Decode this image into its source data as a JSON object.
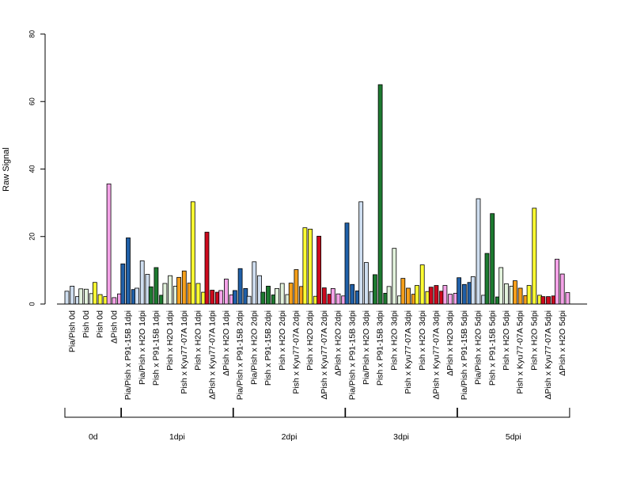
{
  "chart_data": {
    "type": "bar",
    "title": "",
    "ylabel": "Raw Signal",
    "xlabel": "",
    "ylim": [
      0,
      80
    ],
    "yticks": [
      0,
      20,
      40,
      60,
      80
    ],
    "bars_per_group": 3,
    "categories": [
      "Pia/Pish 0d",
      "Pish 0d",
      "Pish 0d",
      "ΔPish 0d",
      "Pia/Pish x P91-15B 1dpi",
      "Pia/Pish x H2O 1dpi",
      "Pish x P91-15B 1dpi",
      "Pish x H2O 1dpi",
      "Pish x Kyu77-07A 1dpi",
      "Pish x H2O 1dpi",
      "ΔPish x Kyu77-07A 1dpi",
      "ΔPish x H2O 1dpi",
      "Pia/Pish x P91-15B 2dpi",
      "Pia/Pish x H2O 2dpi",
      "Pish x P91-15B 2dpi",
      "Pish x H2O 2dpi",
      "Pish x Kyu77-07A 2dpi",
      "Pish x H2O 2dpi",
      "ΔPish x Kyu77-07A 2dpi",
      "ΔPish x H2O 2dpi",
      "Pia/Pish x P91-15B 3dpi",
      "Pia/Pish x H2O 3dpi",
      "Pish x P91-15B 3dpi",
      "Pish x H2O 3dpi",
      "Pish x Kyu77-07A 3dpi",
      "Pish x H2O 3dpi",
      "ΔPish x Kyu77-07A 3dpi",
      "ΔPish x H2O 3dpi",
      "Pia/Pish x P91-15B 5dpi",
      "Pia/Pish x H2O 5dpi",
      "Pish x P91-15B 5dpi",
      "Pish x H2O 5dpi",
      "Pish x Kyu77-07A 5dpi",
      "Pish x H2O 5dpi",
      "ΔPish x Kyu77-07A 5dpi",
      "ΔPish x H2O 5dpi"
    ],
    "colors": [
      "#cfdef0",
      "#e2f2dc",
      "#ffff33",
      "#f5a3e8",
      "#2060a8",
      "#cfdef0",
      "#1d7a30",
      "#e2f2dc",
      "#f59f1a",
      "#ffff33",
      "#cc0a1e",
      "#f5a3e8",
      "#2060a8",
      "#cfdef0",
      "#1d7a30",
      "#e2f2dc",
      "#f59f1a",
      "#ffff33",
      "#cc0a1e",
      "#f5a3e8",
      "#2060a8",
      "#cfdef0",
      "#1d7a30",
      "#e2f2dc",
      "#f59f1a",
      "#ffff33",
      "#cc0a1e",
      "#f5a3e8",
      "#2060a8",
      "#cfdef0",
      "#1d7a30",
      "#e2f2dc",
      "#f59f1a",
      "#ffff33",
      "#cc0a1e",
      "#f5a3e8"
    ],
    "values": [
      [
        3.8,
        5.3,
        2.2
      ],
      [
        4.5,
        4.4,
        3.1
      ],
      [
        6.4,
        2.8,
        2.2
      ],
      [
        35.6,
        1.9,
        3.0
      ],
      [
        11.9,
        19.6,
        4.3
      ],
      [
        4.7,
        12.8,
        8.8
      ],
      [
        5.1,
        10.8,
        2.6
      ],
      [
        6.1,
        8.4,
        5.3
      ],
      [
        7.9,
        9.8,
        6.2
      ],
      [
        30.3,
        6.1,
        3.5
      ],
      [
        21.3,
        4.1,
        3.5
      ],
      [
        4.0,
        7.4,
        2.7
      ],
      [
        4.0,
        10.5,
        4.6
      ],
      [
        2.3,
        12.5,
        8.4
      ],
      [
        3.5,
        5.3,
        2.7
      ],
      [
        4.6,
        6.1,
        2.8
      ],
      [
        6.2,
        10.2,
        5.2
      ],
      [
        22.6,
        22.2,
        2.3
      ],
      [
        20.1,
        4.8,
        2.9
      ],
      [
        4.6,
        3.0,
        2.4
      ],
      [
        24.0,
        5.8,
        3.9
      ],
      [
        30.3,
        12.3,
        3.7
      ],
      [
        8.7,
        65.0,
        3.2
      ],
      [
        5.2,
        16.5,
        2.4
      ],
      [
        7.6,
        4.7,
        2.9
      ],
      [
        5.5,
        11.6,
        3.7
      ],
      [
        5.0,
        5.5,
        3.8
      ],
      [
        5.5,
        2.9,
        3.2
      ],
      [
        7.8,
        5.8,
        6.4
      ],
      [
        8.1,
        31.2,
        2.6
      ],
      [
        15.0,
        26.8,
        2.1
      ],
      [
        10.8,
        6.0,
        5.3
      ],
      [
        6.9,
        4.7,
        2.5
      ],
      [
        5.5,
        28.4,
        2.6
      ],
      [
        2.2,
        2.2,
        2.4
      ],
      [
        13.3,
        8.9,
        3.4
      ]
    ],
    "groups": [
      {
        "label": "0d",
        "count": 4
      },
      {
        "label": "1dpi",
        "count": 8
      },
      {
        "label": "2dpi",
        "count": 8
      },
      {
        "label": "3dpi",
        "count": 8
      },
      {
        "label": "5dpi",
        "count": 8
      }
    ]
  }
}
